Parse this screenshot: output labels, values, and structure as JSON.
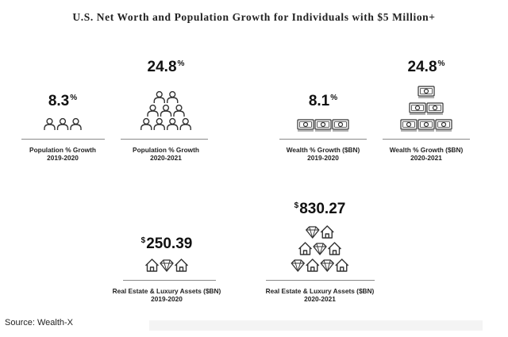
{
  "title": "U.S. Net Worth and Population Growth for Individuals with $5 Million+",
  "source": "Source: Wealth-X",
  "chart_data": {
    "type": "pictogram",
    "title": "U.S. Net Worth and Population Growth for Individuals with $5 Million+",
    "stats": [
      {
        "id": "pop1920",
        "value_text": "8.3",
        "prefix": "",
        "suffix": "%",
        "value": 8.3,
        "line1": "Population % Growth",
        "line2": "2019-2020",
        "icon": "person-icon",
        "rows": [
          3
        ]
      },
      {
        "id": "pop2021",
        "value_text": "24.8",
        "prefix": "",
        "suffix": "%",
        "value": 24.8,
        "line1": "Population % Growth",
        "line2": "2020-2021",
        "icon": "person-icon",
        "rows": [
          2,
          3,
          4
        ]
      },
      {
        "id": "w1920",
        "value_text": "8.1",
        "prefix": "",
        "suffix": "%",
        "value": 8.1,
        "line1": "Wealth % Growth ($BN)",
        "line2": "2019-2020",
        "icon": "banknote-icon",
        "rows": [
          3
        ]
      },
      {
        "id": "w2021",
        "value_text": "24.8",
        "prefix": "",
        "suffix": "%",
        "value": 24.8,
        "line1": "Wealth % Growth ($BN)",
        "line2": "2020-2021",
        "icon": "banknote-icon",
        "rows": [
          1,
          2,
          3
        ]
      },
      {
        "id": "re1920",
        "value_text": "250.39",
        "prefix": "$",
        "suffix": "",
        "value": 250.39,
        "line1": "Real Estate & Luxury Assets ($BN)",
        "line2": "2019-2020",
        "icon": "house-diamond-icon",
        "rows": [
          [
            "house",
            "diamond",
            "house"
          ]
        ]
      },
      {
        "id": "re2021",
        "value_text": "830.27",
        "prefix": "$",
        "suffix": "",
        "value": 830.27,
        "line1": "Real Estate & Luxury Assets ($BN)",
        "line2": "2020-2021",
        "icon": "house-diamond-icon",
        "rows": [
          [
            "diamond",
            "house"
          ],
          [
            "house",
            "diamond",
            "house"
          ],
          [
            "diamond",
            "house",
            "diamond",
            "house"
          ]
        ]
      }
    ]
  }
}
